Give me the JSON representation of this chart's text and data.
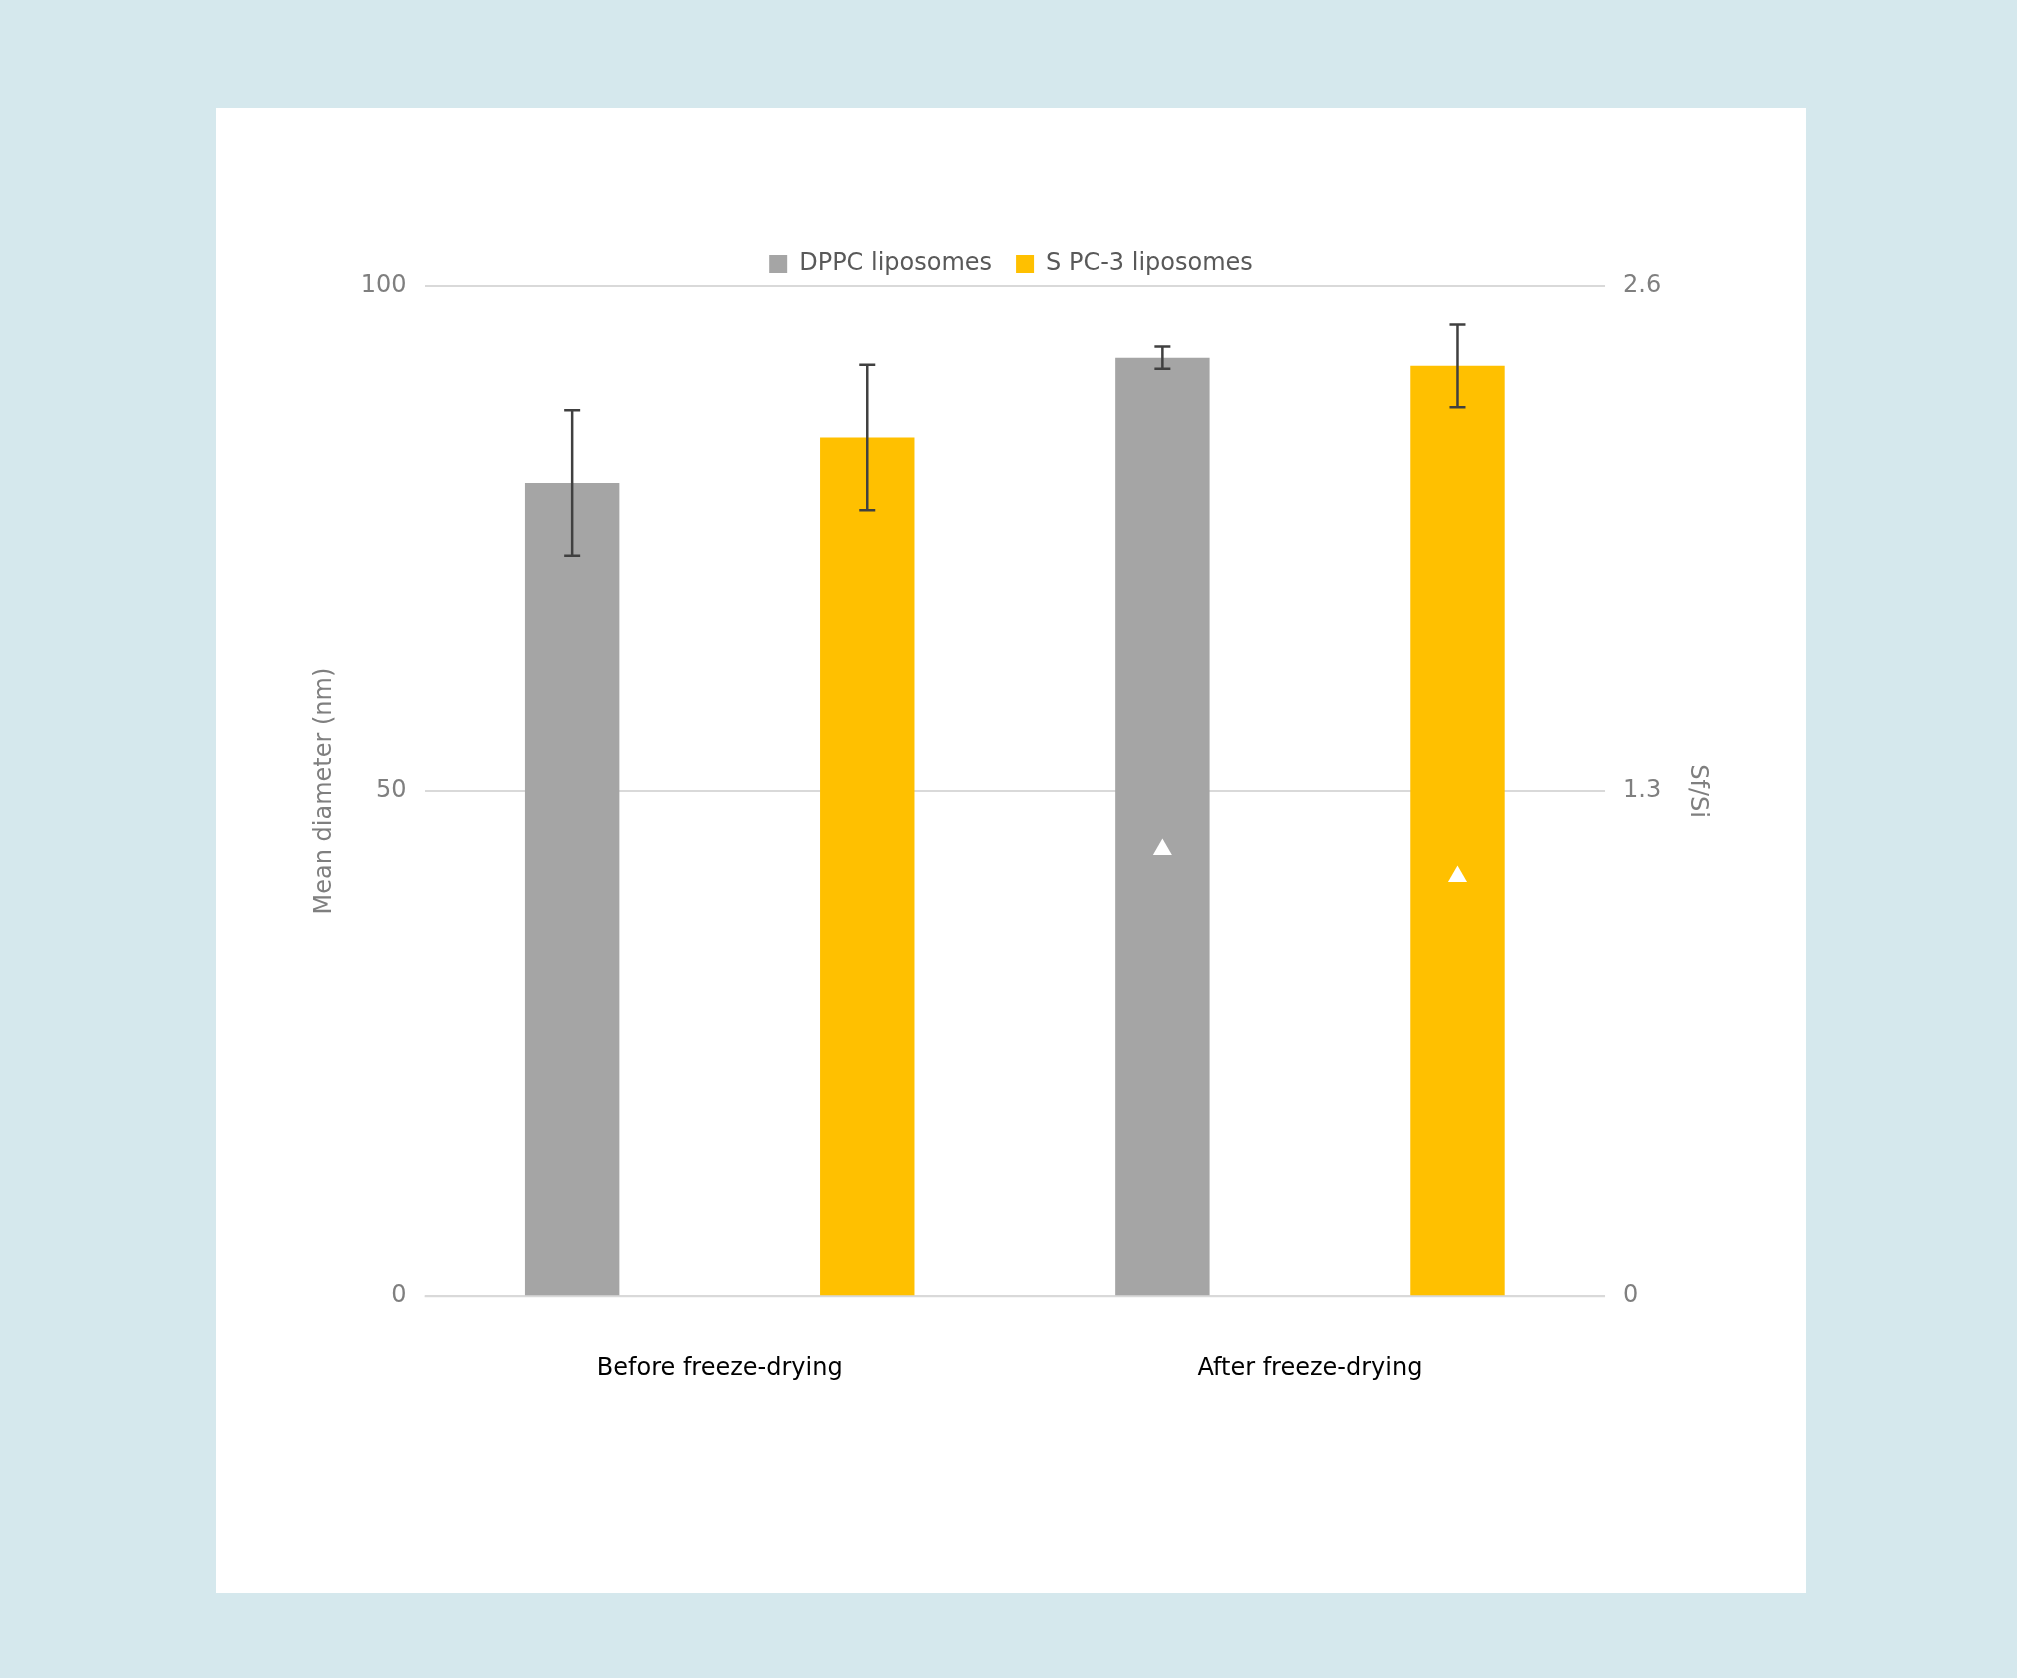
{
  "chart_data": {
    "type": "bar",
    "ylabel": "Mean diameter (nm)",
    "y2label": "Sf/Si",
    "categories": [
      "Before freeze-drying",
      "After freeze-drying"
    ],
    "series": [
      {
        "name": "DPPC liposomes",
        "color": "#a5a5a5",
        "values": [
          80.5,
          92.9
        ],
        "errors": [
          7.2,
          1.1
        ]
      },
      {
        "name": "S PC-3 liposomes",
        "color": "#ffc000",
        "values": [
          85.0,
          92.1
        ],
        "errors": [
          7.2,
          4.1
        ]
      },
      {
        "type": "scatter",
        "axis": "y2",
        "color": "#ffffff",
        "marker": "triangle",
        "x": [
          "After freeze-drying"
        ],
        "values": [
          1.15
        ]
      },
      {
        "type": "scatter",
        "axis": "y2",
        "color": "#ffffff",
        "marker": "triangle",
        "x": [
          "After freeze-drying"
        ],
        "values": [
          1.08
        ]
      }
    ],
    "ylim": [
      0,
      100
    ],
    "yticks": [
      0,
      50,
      100
    ],
    "y2lim": [
      0,
      2.6
    ],
    "y2ticks": [
      0,
      1.3,
      2.6
    ],
    "grid": "y",
    "legend": "top"
  }
}
